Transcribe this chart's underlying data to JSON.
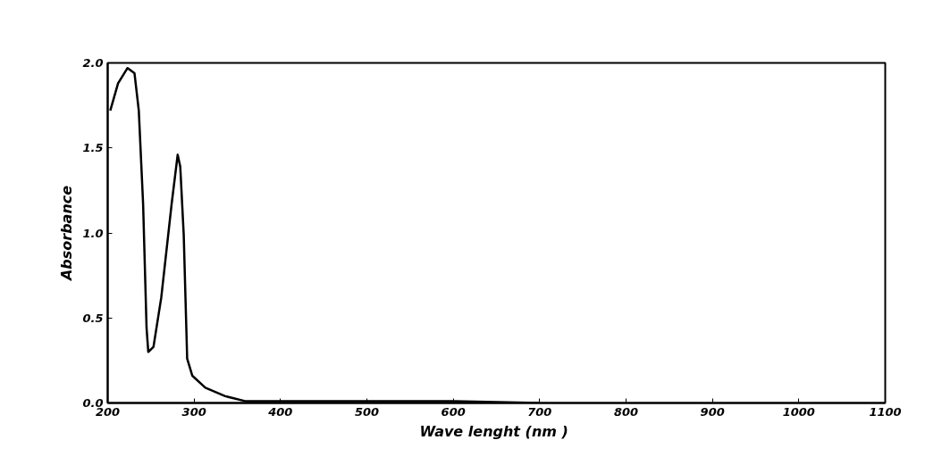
{
  "chart_data": {
    "type": "line",
    "xlabel": "Wave lenght  (nm )",
    "ylabel": "Absorbance",
    "xlim": [
      200,
      1100
    ],
    "ylim": [
      0,
      2.0
    ],
    "xticks": [
      200,
      300,
      400,
      500,
      600,
      700,
      800,
      900,
      1000,
      1100
    ],
    "yticks": [
      {
        "value": 0,
        "label": "0.0"
      },
      {
        "value": 0.5,
        "label": "0.5"
      },
      {
        "value": 1,
        "label": "1.0"
      },
      {
        "value": 1.5,
        "label": "1.5"
      },
      {
        "value": 2,
        "label": "2.0"
      }
    ],
    "grid": false,
    "marker": "none",
    "line_style": "solid",
    "series": [
      {
        "color": "#000000",
        "x": [
          203,
          212,
          223,
          231,
          236,
          241,
          245,
          247,
          253,
          262,
          274,
          281,
          284,
          288,
          292,
          298,
          313,
          336,
          360,
          400,
          500,
          600,
          700
        ],
        "values": [
          1.72,
          1.88,
          1.97,
          1.94,
          1.72,
          1.17,
          0.44,
          0.3,
          0.33,
          0.62,
          1.17,
          1.46,
          1.39,
          0.99,
          0.26,
          0.16,
          0.09,
          0.04,
          0.01,
          0.01,
          0.01,
          0.01,
          0.0
        ]
      }
    ]
  }
}
